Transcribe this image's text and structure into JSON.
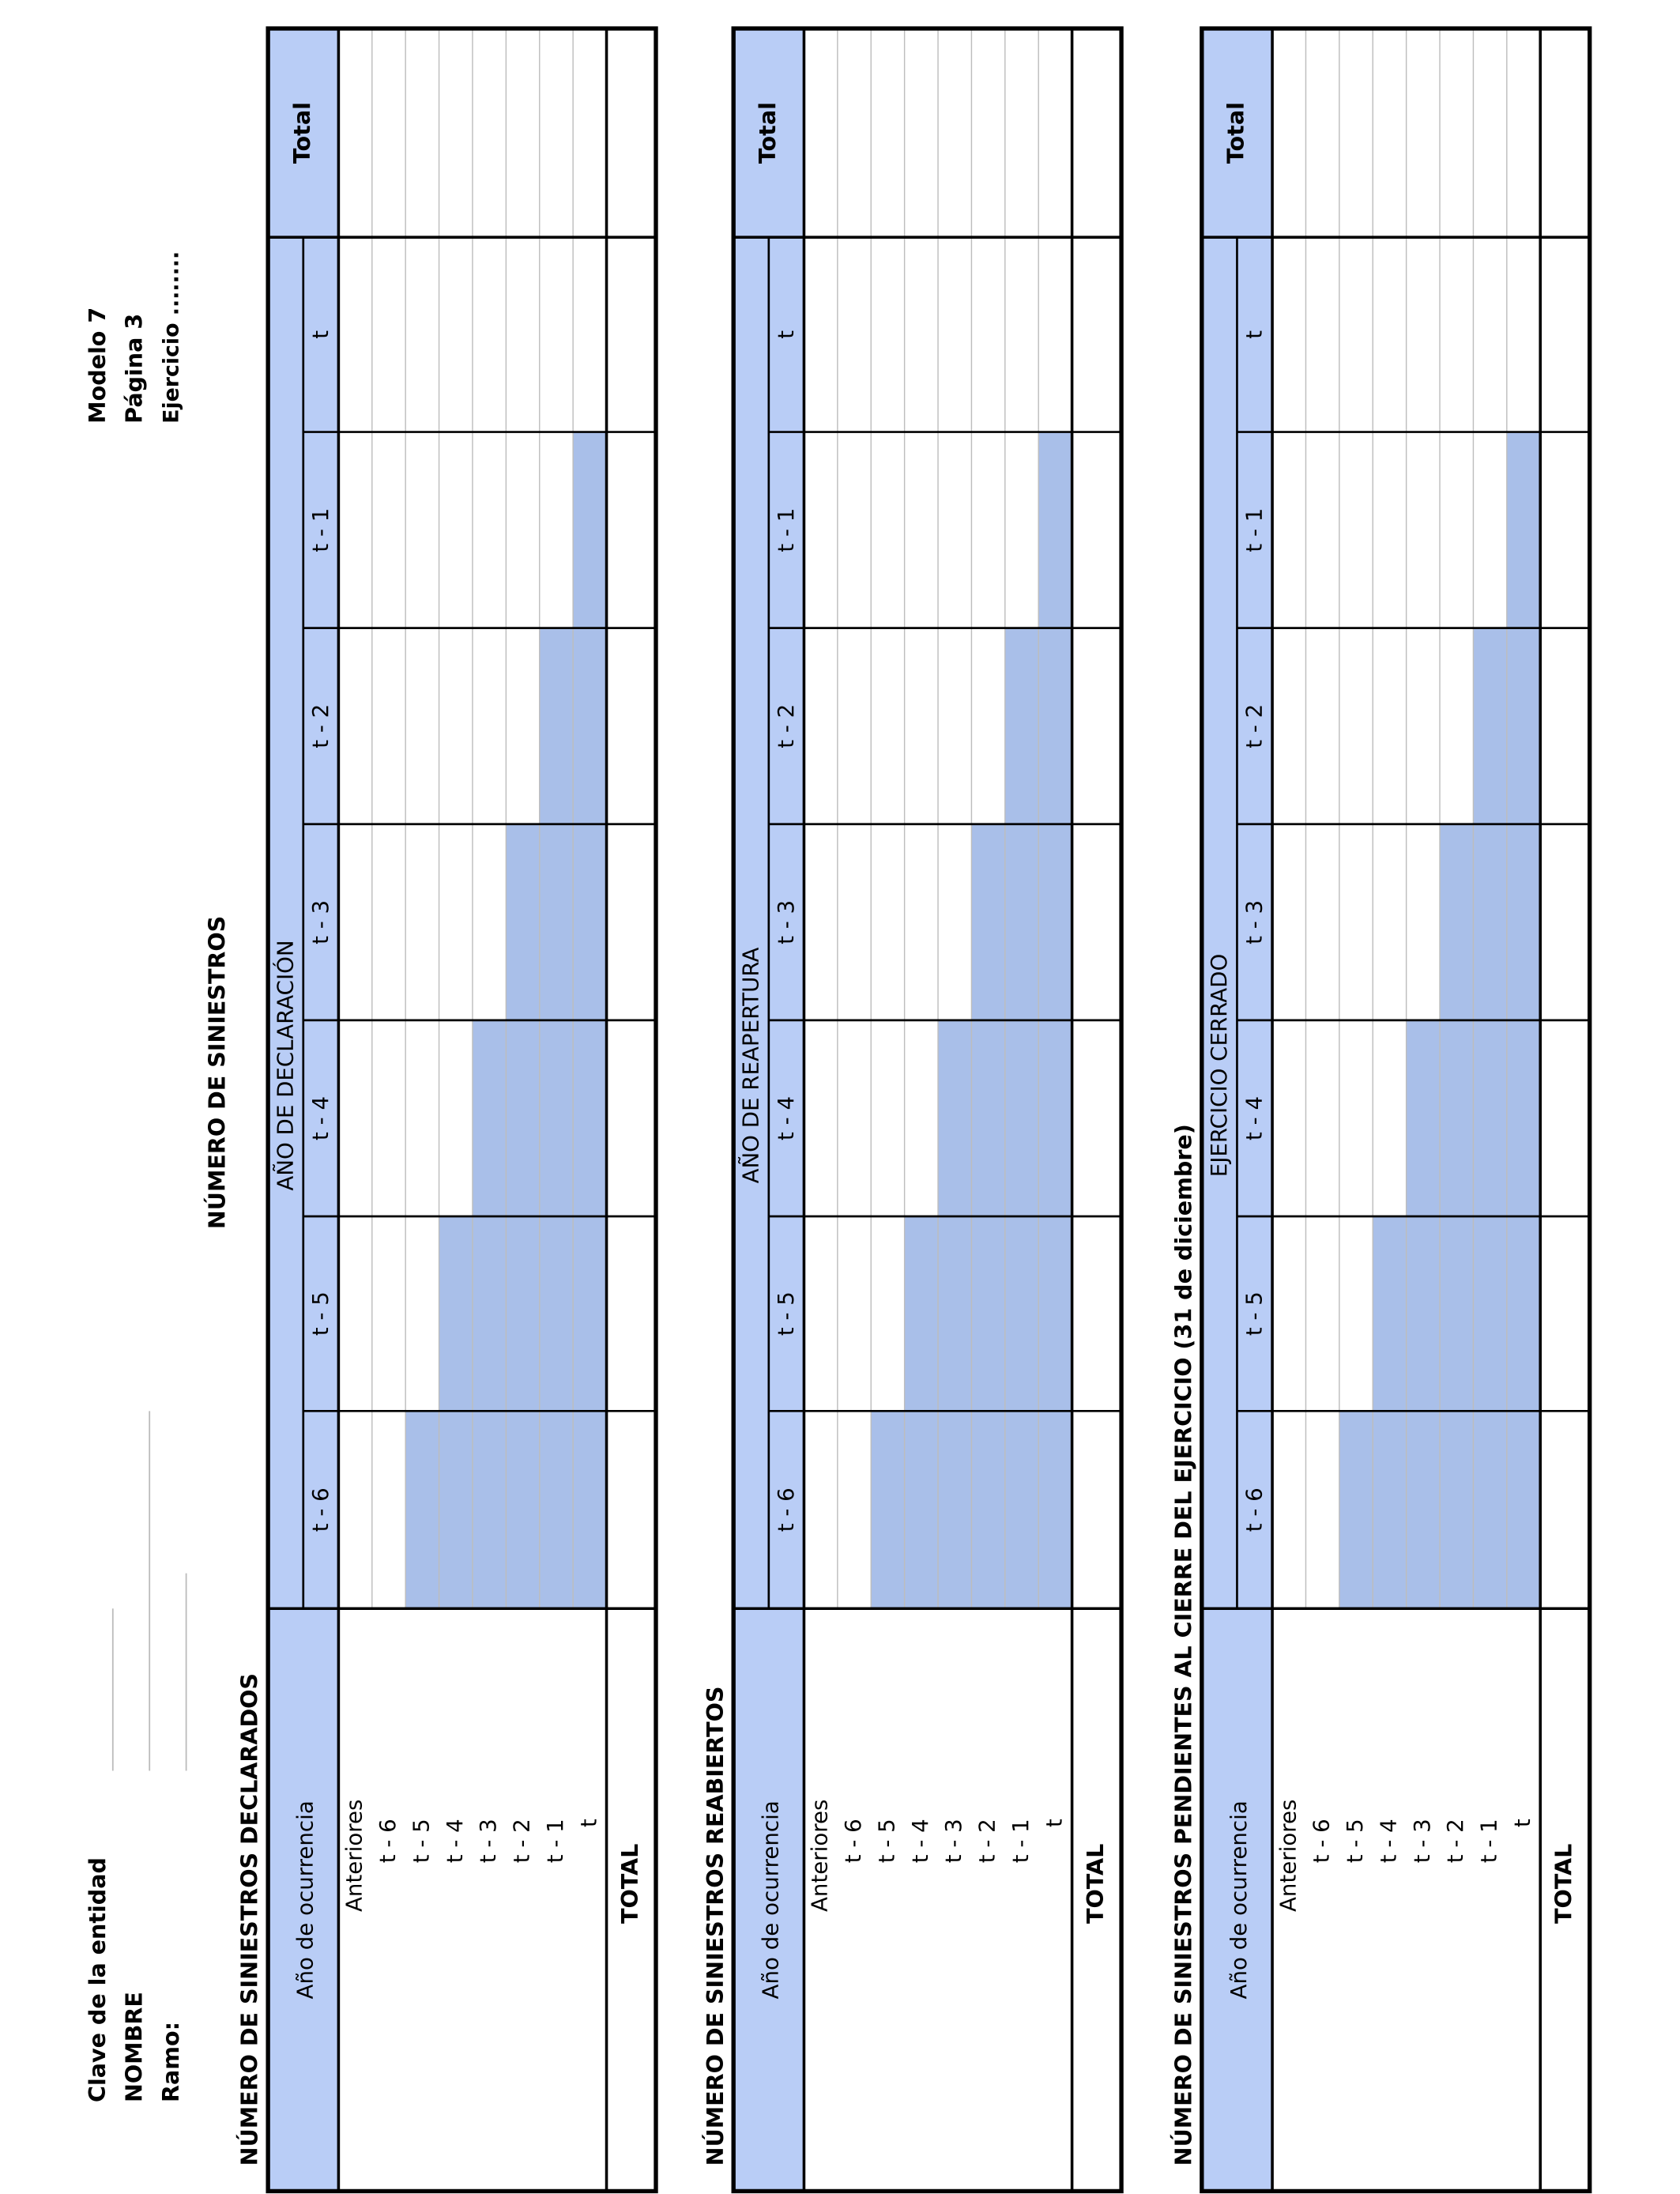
{
  "header": {
    "fields": [
      "Clave de la entidad",
      "NOMBRE",
      "Ramo:"
    ],
    "model": [
      "Modelo 7",
      "Página 3",
      "Ejercicio ........"
    ]
  },
  "title": "NÚMERO DE SINIESTROS",
  "sections": [
    {
      "title": "NÚMERO DE SINIESTROS DECLARADOS",
      "row_header": "Año de ocurrencia",
      "band": "AÑO DE DECLARACIÓN",
      "columns": [
        "t - 6",
        "t - 5",
        "t - 4",
        "t - 3",
        "t - 2",
        "t - 1",
        "t"
      ],
      "total_column": "Total",
      "rows": [
        "Anteriores",
        "t - 6",
        "t - 5",
        "t - 4",
        "t - 3",
        "t - 2",
        "t - 1",
        "t"
      ],
      "total_row": "TOTAL"
    },
    {
      "title": "NÚMERO DE SINIESTROS REABIERTOS",
      "row_header": "Año de ocurrencia",
      "band": "AÑO DE REAPERTURA",
      "columns": [
        "t - 6",
        "t - 5",
        "t - 4",
        "t - 3",
        "t - 2",
        "t - 1",
        "t"
      ],
      "total_column": "Total",
      "rows": [
        "Anteriores",
        "t - 6",
        "t - 5",
        "t - 4",
        "t - 3",
        "t - 2",
        "t - 1",
        "t"
      ],
      "total_row": "TOTAL"
    },
    {
      "title": "NÚMERO DE SINIESTROS PENDIENTES AL CIERRE DEL EJERCICIO (31 de diciembre)",
      "row_header": "Año de ocurrencia",
      "band": "EJERCICIO CERRADO",
      "columns": [
        "t - 6",
        "t - 5",
        "t - 4",
        "t - 3",
        "t - 2",
        "t - 1",
        "t"
      ],
      "total_column": "Total",
      "rows": [
        "Anteriores",
        "t - 6",
        "t - 5",
        "t - 4",
        "t - 3",
        "t - 2",
        "t - 1",
        "t"
      ],
      "total_row": "TOTAL"
    }
  ]
}
